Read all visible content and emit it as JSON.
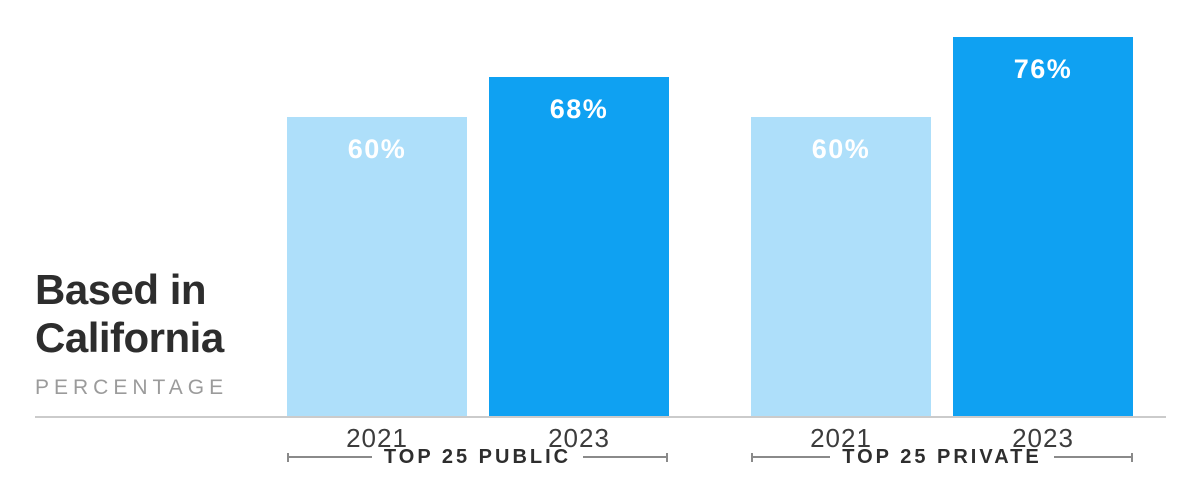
{
  "header": {
    "title_line1": "Based in",
    "title_line2": "California",
    "subtitle": "PERCENTAGE"
  },
  "chart_data": {
    "type": "bar",
    "title": "Based in California",
    "ylabel": "Percentage",
    "categories": [
      "2021",
      "2023"
    ],
    "series": [
      {
        "name": "TOP 25 PUBLIC",
        "values": [
          60,
          68
        ]
      },
      {
        "name": "TOP 25 PRIVATE",
        "values": [
          60,
          76
        ]
      }
    ],
    "value_labels": [
      [
        "60%",
        "68%"
      ],
      [
        "60%",
        "76%"
      ]
    ],
    "unit": "%",
    "ylim": [
      0,
      83.4
    ],
    "grid": false,
    "legend": "none",
    "bar_colors_by_category": {
      "2021": "#AEDFFA",
      "2023": "#0FA1F2"
    }
  },
  "colors": {
    "bar_2021": "#AEDFFA",
    "bar_2023": "#0FA1F2",
    "title_text": "#2D2D2D",
    "subtitle_text": "#9B9B9B",
    "axis_line": "#CBCBCB",
    "bracket_line": "#8A8A8A",
    "tick_text": "#3C3C3C",
    "group_label_text": "#2E2E2E",
    "value_label_text": "#FFFFFF",
    "background": "#FFFFFF"
  }
}
